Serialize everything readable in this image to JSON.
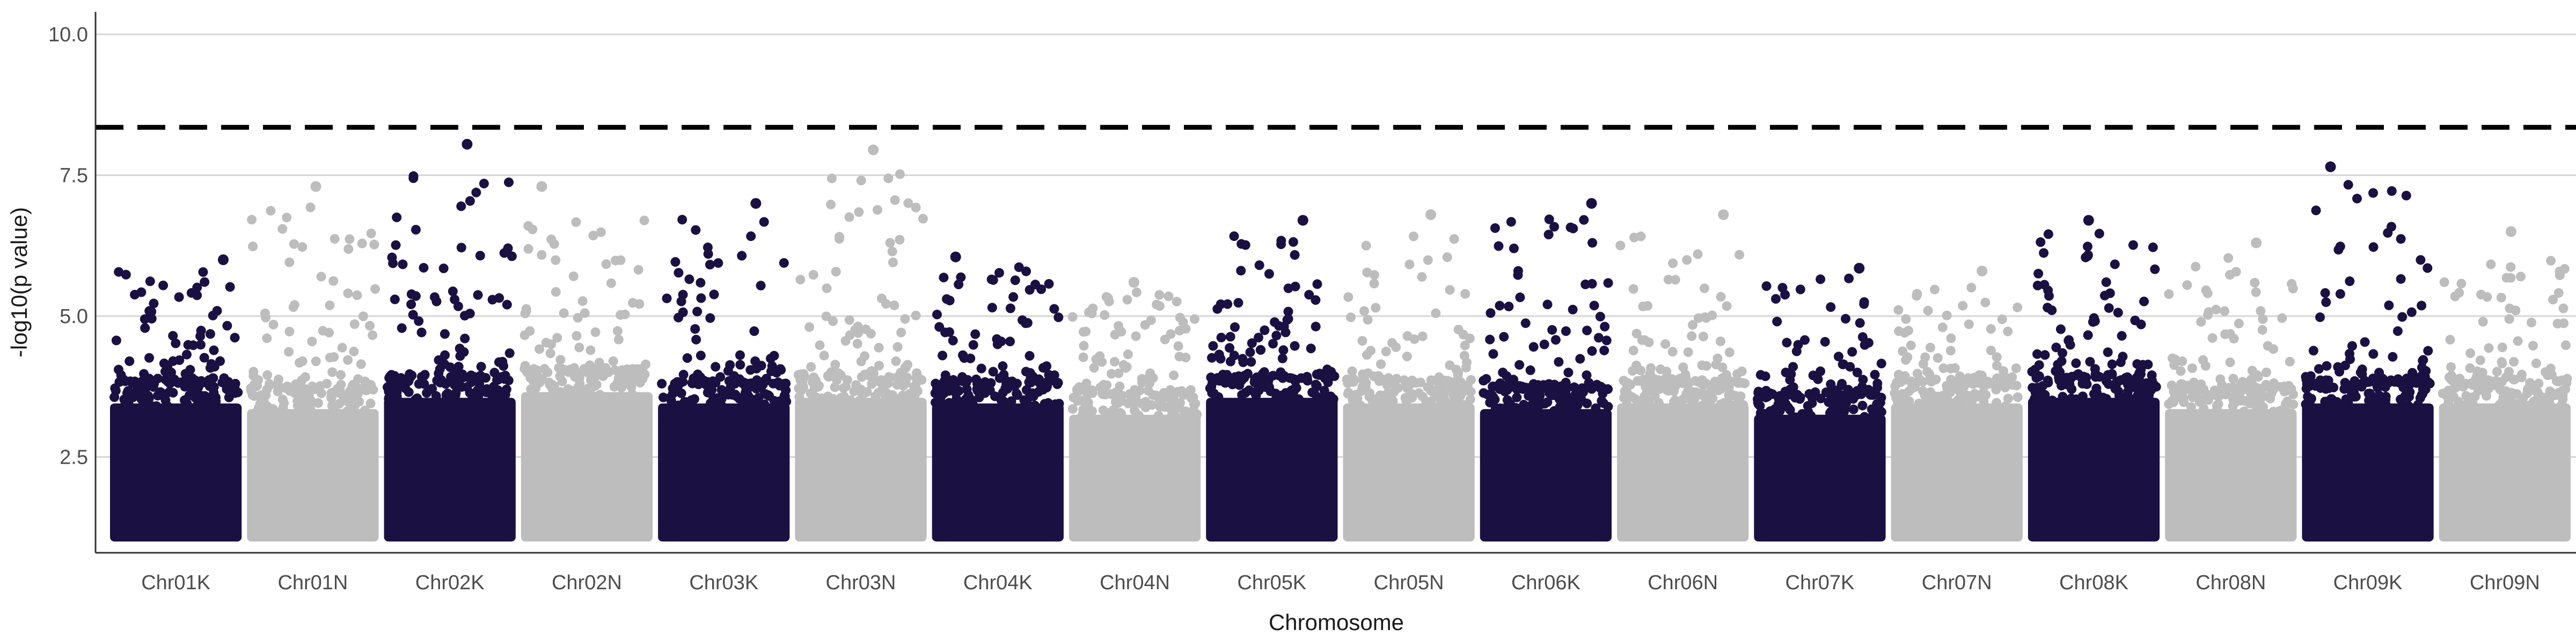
{
  "chart_data": {
    "type": "scatter",
    "title": "",
    "xlabel": "Chromosome",
    "ylabel": "-log10(p value)",
    "ylim": [
      0.8,
      10.4
    ],
    "y_ticks": [
      2.5,
      5.0,
      7.5,
      10.0
    ],
    "y_tick_labels": [
      "2.5",
      "5.0",
      "7.5",
      "10.0"
    ],
    "grid": "horizontal major gridlines",
    "threshold": 8.35,
    "colors": {
      "odd": "#1b1042",
      "even": "#bdbdbd",
      "threshold": "#000000",
      "grid": "#d6d6d6",
      "axis": "#333333"
    },
    "chromosomes": [
      {
        "name": "Chr01K",
        "base_top": 3.8,
        "max": 6.0
      },
      {
        "name": "Chr01N",
        "base_top": 3.7,
        "max": 7.3
      },
      {
        "name": "Chr02K",
        "base_top": 3.9,
        "max": 8.05
      },
      {
        "name": "Chr02N",
        "base_top": 4.0,
        "max": 7.3
      },
      {
        "name": "Chr03K",
        "base_top": 3.8,
        "max": 7.0
      },
      {
        "name": "Chr03N",
        "base_top": 3.9,
        "max": 7.95
      },
      {
        "name": "Chr04K",
        "base_top": 3.8,
        "max": 6.05
      },
      {
        "name": "Chr04N",
        "base_top": 3.6,
        "max": 5.6
      },
      {
        "name": "Chr05K",
        "base_top": 3.9,
        "max": 6.7
      },
      {
        "name": "Chr05N",
        "base_top": 3.8,
        "max": 6.8
      },
      {
        "name": "Chr06K",
        "base_top": 3.7,
        "max": 7.0
      },
      {
        "name": "Chr06N",
        "base_top": 3.8,
        "max": 6.8
      },
      {
        "name": "Chr07K",
        "base_top": 3.6,
        "max": 5.85
      },
      {
        "name": "Chr07N",
        "base_top": 3.8,
        "max": 5.8
      },
      {
        "name": "Chr08K",
        "base_top": 3.9,
        "max": 6.7
      },
      {
        "name": "Chr08N",
        "base_top": 3.7,
        "max": 6.3
      },
      {
        "name": "Chr09K",
        "base_top": 3.8,
        "max": 7.65
      },
      {
        "name": "Chr09N",
        "base_top": 3.8,
        "max": 6.5
      }
    ]
  }
}
